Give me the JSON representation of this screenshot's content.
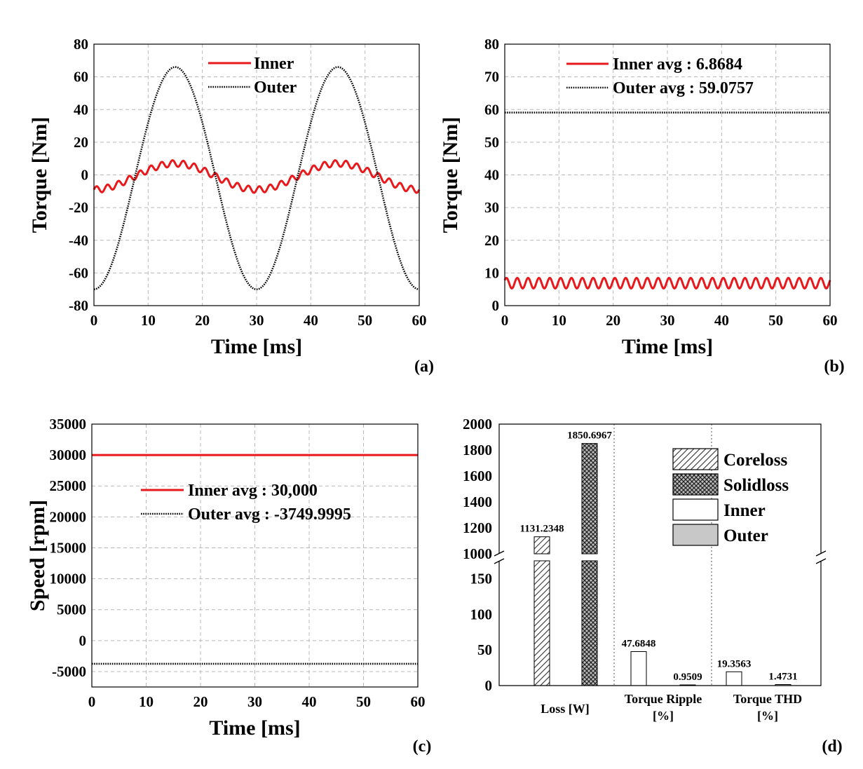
{
  "colors": {
    "inner": "#e8181b",
    "outer": "#000000",
    "grid": "#b8b8b8"
  },
  "chart_data": [
    {
      "id": "a",
      "type": "line",
      "panel_label": "(a)",
      "xlabel": "Time [ms]",
      "ylabel": "Torque [Nm]",
      "xlim": [
        0,
        60
      ],
      "ylim": [
        -80,
        80
      ],
      "xticks": [
        0,
        10,
        20,
        30,
        40,
        50,
        60
      ],
      "yticks": [
        -80,
        -60,
        -40,
        -20,
        0,
        20,
        40,
        60,
        80
      ],
      "grid": true,
      "legend_position": "top-center",
      "series": [
        {
          "name": "Inner",
          "style": "solid",
          "x": [
            0,
            15,
            30,
            45,
            60
          ],
          "y": [
            -9,
            7,
            -9,
            7,
            -9
          ],
          "ripple_amplitude": 2,
          "ripple_period_ms": 2
        },
        {
          "name": "Outer",
          "style": "dotted",
          "x": [
            0,
            15,
            30,
            45,
            60
          ],
          "y": [
            -68,
            66,
            -70,
            66,
            -70
          ]
        }
      ]
    },
    {
      "id": "b",
      "type": "line",
      "panel_label": "(b)",
      "xlabel": "Time [ms]",
      "ylabel": "Torque [Nm]",
      "xlim": [
        0,
        60
      ],
      "ylim": [
        0,
        80
      ],
      "xticks": [
        0,
        10,
        20,
        30,
        40,
        50,
        60
      ],
      "yticks": [
        0,
        10,
        20,
        30,
        40,
        50,
        60,
        70,
        80
      ],
      "grid": true,
      "legend_position": "top-center",
      "series": [
        {
          "name": "Inner avg : 6.8684",
          "style": "solid",
          "mean": 6.8684,
          "ripple_amplitude": 1.6,
          "ripple_period_ms": 2
        },
        {
          "name": "Outer avg : 59.0757",
          "style": "dotted",
          "mean": 59.0757
        }
      ]
    },
    {
      "id": "c",
      "type": "line",
      "panel_label": "(c)",
      "xlabel": "Time [ms]",
      "ylabel": "Speed [rpm]",
      "xlim": [
        0,
        60
      ],
      "ylim": [
        -7500,
        35000
      ],
      "xticks": [
        0,
        10,
        20,
        30,
        40,
        50,
        60
      ],
      "yticks": [
        -5000,
        0,
        5000,
        10000,
        15000,
        20000,
        25000,
        30000,
        35000
      ],
      "grid": true,
      "legend_position": "center",
      "series": [
        {
          "name": "Inner avg : 30,000",
          "style": "solid",
          "mean": 30000
        },
        {
          "name": "Outer avg : -3749.9995",
          "style": "dotted",
          "mean": -3749.9995
        }
      ]
    },
    {
      "id": "d",
      "type": "bar",
      "panel_label": "(d)",
      "broken_axis": true,
      "upper_ylim": [
        1000,
        2000
      ],
      "upper_yticks": [
        1000,
        1200,
        1400,
        1600,
        1800,
        2000
      ],
      "lower_ylim": [
        0,
        175
      ],
      "lower_yticks": [
        0,
        50,
        100,
        150
      ],
      "legend_position": "top-right",
      "legend": [
        {
          "name": "Coreloss",
          "fill": "hatch"
        },
        {
          "name": "Solidloss",
          "fill": "crosshatch"
        },
        {
          "name": "Inner",
          "fill": "white"
        },
        {
          "name": "Outer",
          "fill": "gray"
        }
      ],
      "groups": [
        {
          "label_lines": [
            "Loss [W]"
          ],
          "bars": [
            {
              "fill": "hatch",
              "value": 1131.2348,
              "label": "1131.2348"
            },
            {
              "fill": "crosshatch",
              "value": 1850.6967,
              "label": "1850.6967"
            }
          ]
        },
        {
          "label_lines": [
            "Torque Ripple",
            "[%]"
          ],
          "bars": [
            {
              "fill": "white",
              "value": 47.6848,
              "label": "47.6848"
            },
            {
              "fill": "gray",
              "value": 0.9509,
              "label": "0.9509"
            }
          ]
        },
        {
          "label_lines": [
            "Torque THD",
            "[%]"
          ],
          "bars": [
            {
              "fill": "white",
              "value": 19.3563,
              "label": "19.3563"
            },
            {
              "fill": "gray",
              "value": 1.4731,
              "label": "1.4731"
            }
          ]
        }
      ]
    }
  ]
}
